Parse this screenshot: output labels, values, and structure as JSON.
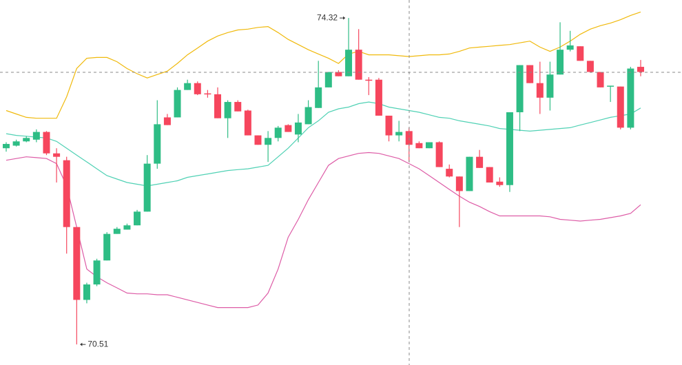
{
  "chart_data": {
    "type": "candlestick",
    "ylim": [
      70.27,
      74.53
    ],
    "up_color": "#2ebd85",
    "down_color": "#f6465d",
    "open": [
      72.8,
      72.83,
      72.88,
      72.9,
      72.99,
      72.74,
      72.66,
      71.88,
      71.03,
      71.21,
      71.49,
      71.8,
      71.85,
      71.9,
      72.06,
      72.62,
      73.16,
      73.16,
      73.48,
      73.56,
      73.44,
      73.43,
      73.15,
      73.34,
      73.24,
      72.95,
      72.84,
      72.92,
      73.07,
      72.96,
      73.08,
      73.27,
      73.51,
      73.69,
      73.64,
      73.95,
      73.6,
      73.6,
      73.18,
      72.95,
      73.0,
      72.86,
      72.8,
      72.87,
      72.56,
      72.47,
      72.3,
      72.7,
      72.58,
      72.41,
      72.37,
      73.22,
      73.77,
      73.56,
      73.39,
      73.66,
      73.95,
      73.99,
      73.82,
      73.69,
      73.52,
      73.52,
      73.04,
      73.75
    ],
    "high": [
      72.87,
      72.9,
      72.94,
      73.02,
      73.0,
      72.8,
      72.7,
      71.88,
      71.23,
      71.51,
      71.82,
      71.88,
      71.92,
      72.08,
      72.72,
      73.36,
      73.2,
      73.51,
      73.6,
      73.58,
      73.48,
      73.51,
      73.36,
      73.36,
      73.25,
      72.95,
      73.0,
      73.06,
      73.08,
      73.2,
      73.36,
      73.82,
      73.69,
      73.71,
      74.32,
      74.19,
      73.63,
      73.62,
      73.18,
      73.12,
      73.04,
      72.88,
      72.87,
      72.88,
      72.61,
      72.47,
      72.7,
      72.78,
      72.58,
      72.46,
      73.22,
      73.77,
      73.77,
      73.81,
      73.81,
      74.27,
      74.17,
      73.99,
      73.82,
      73.69,
      73.53,
      73.52,
      73.75,
      73.83
    ],
    "low": [
      72.76,
      72.82,
      72.87,
      72.87,
      72.72,
      72.4,
      71.57,
      70.51,
      70.99,
      71.19,
      71.49,
      71.8,
      71.85,
      71.9,
      72.06,
      72.56,
      73.07,
      73.16,
      73.48,
      73.42,
      73.39,
      73.15,
      72.92,
      73.23,
      72.95,
      72.84,
      72.64,
      72.88,
      72.99,
      72.87,
      73.08,
      73.27,
      73.51,
      73.64,
      73.64,
      73.6,
      73.42,
      73.18,
      72.88,
      72.88,
      72.64,
      72.8,
      72.8,
      72.58,
      72.46,
      71.88,
      72.3,
      72.57,
      72.4,
      72.35,
      72.29,
      73.0,
      73.56,
      73.2,
      73.24,
      73.66,
      73.93,
      73.82,
      73.69,
      73.51,
      73.34,
      73.02,
      73.02,
      73.64
    ],
    "close": [
      72.85,
      72.88,
      72.92,
      72.99,
      72.74,
      72.7,
      71.88,
      71.03,
      71.21,
      71.49,
      71.8,
      71.86,
      71.9,
      72.06,
      72.62,
      73.08,
      73.07,
      73.48,
      73.56,
      73.43,
      73.43,
      73.15,
      73.34,
      73.23,
      72.95,
      72.84,
      72.92,
      73.04,
      72.99,
      73.1,
      73.28,
      73.51,
      73.69,
      73.64,
      73.95,
      73.6,
      73.59,
      73.18,
      72.95,
      72.99,
      72.84,
      72.8,
      72.87,
      72.58,
      72.47,
      72.3,
      72.7,
      72.57,
      72.4,
      72.37,
      73.22,
      73.77,
      73.56,
      73.39,
      73.66,
      73.95,
      74.0,
      73.82,
      73.69,
      73.51,
      73.53,
      73.04,
      73.73,
      73.69
    ],
    "bands": [
      {
        "color": "#f0b90b",
        "values": [
          73.24,
          73.2,
          73.16,
          73.15,
          73.15,
          73.15,
          73.4,
          73.73,
          73.85,
          73.86,
          73.86,
          73.81,
          73.73,
          73.67,
          73.62,
          73.66,
          73.7,
          73.79,
          73.89,
          73.97,
          74.05,
          74.11,
          74.15,
          74.18,
          74.19,
          74.21,
          74.22,
          74.15,
          74.07,
          74.01,
          73.95,
          73.9,
          73.85,
          73.79,
          73.9,
          73.93,
          73.89,
          73.89,
          73.89,
          73.88,
          73.87,
          73.88,
          73.89,
          73.89,
          73.9,
          73.93,
          73.97,
          73.98,
          73.99,
          74.0,
          74.01,
          74.03,
          74.05,
          73.98,
          73.93,
          73.98,
          74.05,
          74.13,
          74.19,
          74.23,
          74.26,
          74.3,
          74.35,
          74.39
        ]
      },
      {
        "color": "#4fd1b4",
        "values": [
          72.97,
          72.95,
          72.94,
          72.93,
          72.92,
          72.88,
          72.8,
          72.72,
          72.64,
          72.56,
          72.48,
          72.44,
          72.4,
          72.38,
          72.36,
          72.38,
          72.4,
          72.42,
          72.46,
          72.48,
          72.5,
          72.52,
          72.54,
          72.55,
          72.56,
          72.58,
          72.6,
          72.7,
          72.8,
          72.92,
          73.04,
          73.12,
          73.22,
          73.26,
          73.28,
          73.32,
          73.34,
          73.32,
          73.28,
          73.26,
          73.24,
          73.22,
          73.19,
          73.16,
          73.15,
          73.12,
          73.1,
          73.08,
          73.06,
          73.03,
          73.02,
          73.01,
          73.0,
          73.01,
          73.02,
          73.03,
          73.04,
          73.07,
          73.1,
          73.13,
          73.16,
          73.18,
          73.2,
          73.27
        ]
      },
      {
        "color": "#dd5ba6",
        "values": [
          72.66,
          72.68,
          72.7,
          72.69,
          72.68,
          72.62,
          72.36,
          71.88,
          71.39,
          71.3,
          71.23,
          71.17,
          71.11,
          71.1,
          71.1,
          71.09,
          71.09,
          71.06,
          71.03,
          71.0,
          70.97,
          70.94,
          70.94,
          70.94,
          70.94,
          70.97,
          71.11,
          71.39,
          71.76,
          71.97,
          72.2,
          72.4,
          72.6,
          72.68,
          72.71,
          72.74,
          72.75,
          72.74,
          72.71,
          72.68,
          72.62,
          72.56,
          72.48,
          72.4,
          72.32,
          72.24,
          72.17,
          72.12,
          72.06,
          72.01,
          72.01,
          72.01,
          72.01,
          72.01,
          72.0,
          71.97,
          71.96,
          71.95,
          71.96,
          71.97,
          71.99,
          72.01,
          72.04,
          72.14
        ]
      }
    ]
  }
}
